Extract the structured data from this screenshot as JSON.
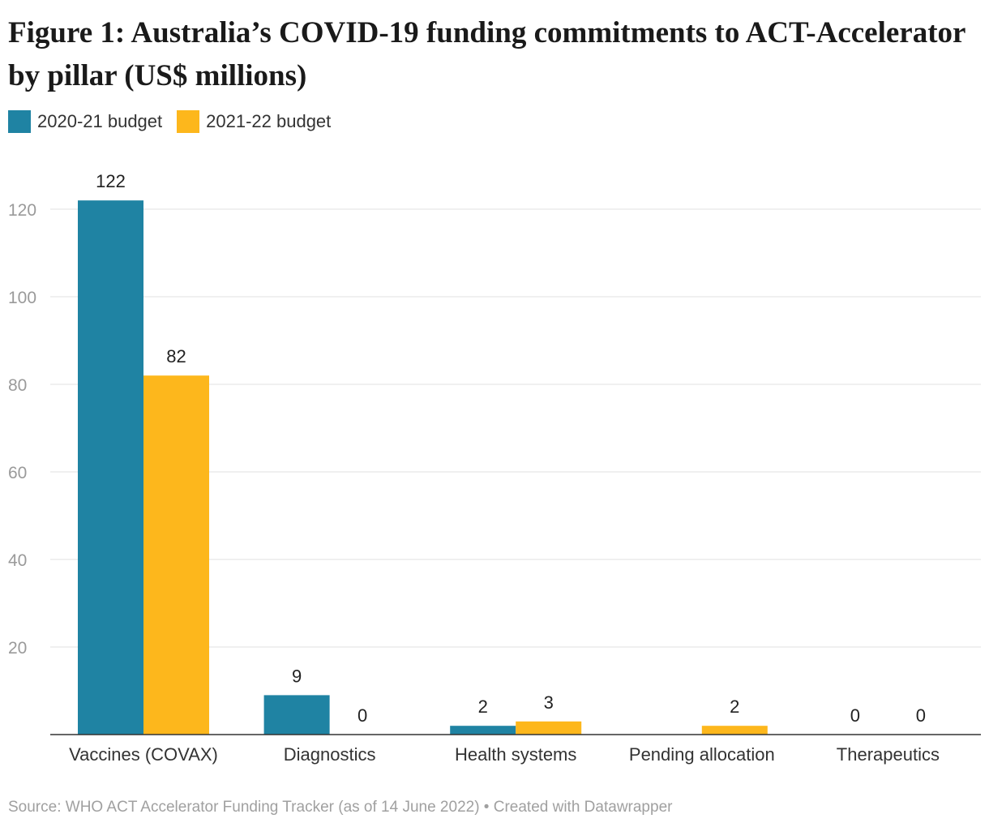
{
  "chart_data": {
    "type": "bar",
    "title": "Figure 1: Australia’s COVID-19 funding commitments to ACT-Accelerator by pillar (US$ millions)",
    "categories": [
      "Vaccines (COVAX)",
      "Diagnostics",
      "Health systems",
      "Pending allocation",
      "Therapeutics"
    ],
    "series": [
      {
        "name": "2020-21 budget",
        "color": "#1f83a3",
        "values": [
          122,
          9,
          2,
          null,
          0
        ]
      },
      {
        "name": "2021-22 budget",
        "color": "#fdb71c",
        "values": [
          82,
          0,
          3,
          2,
          0
        ]
      }
    ],
    "yticks": [
      20,
      40,
      60,
      80,
      100,
      120
    ],
    "ylim": [
      0,
      122
    ],
    "grid": true,
    "legend_position": "top-left",
    "xlabel": "",
    "ylabel": ""
  },
  "source": "Source: WHO ACT Accelerator Funding Tracker (as of 14 June 2022) • Created with Datawrapper"
}
